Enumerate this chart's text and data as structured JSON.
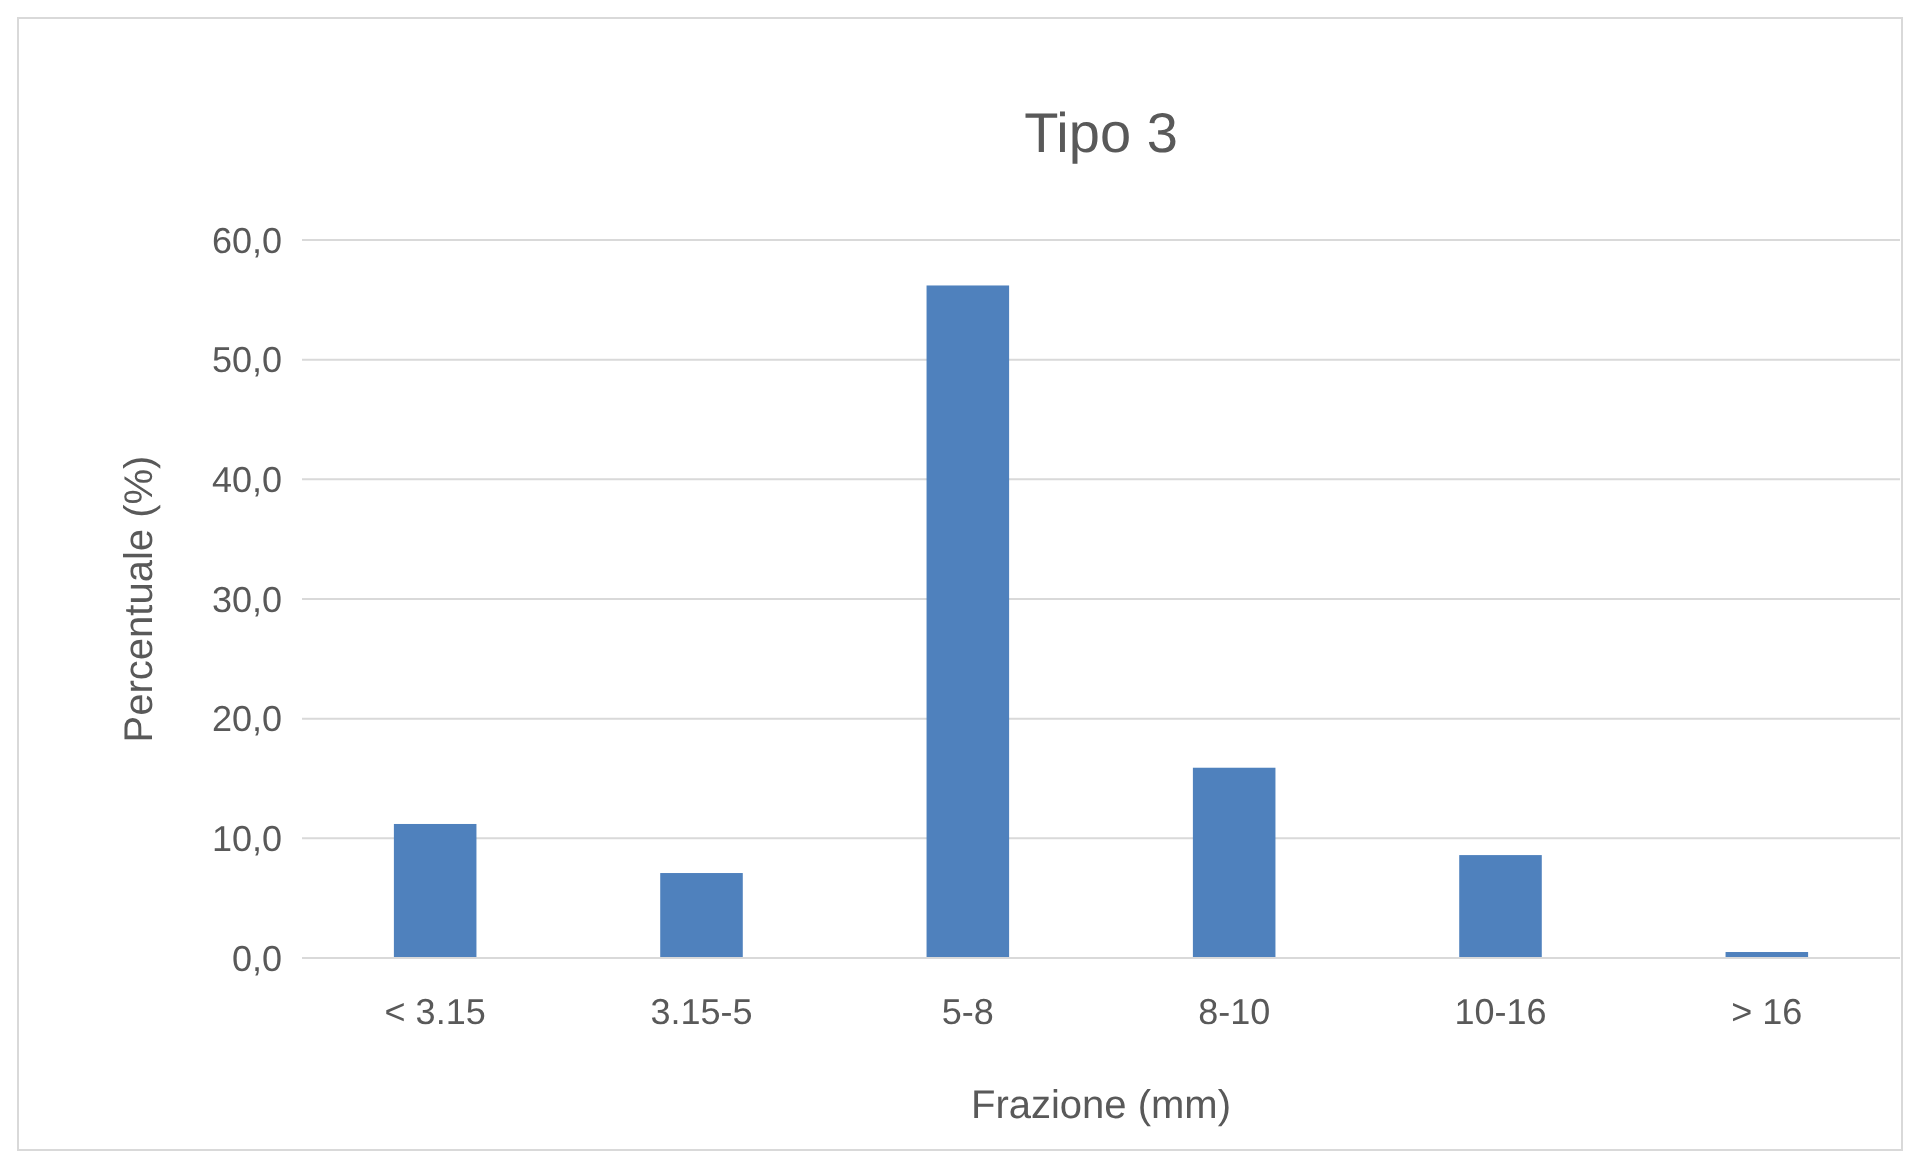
{
  "chart_data": {
    "type": "bar",
    "title": "Tipo 3",
    "xlabel": "Frazione (mm)",
    "ylabel": "Percentuale (%)",
    "categories": [
      "< 3.15",
      "3.15-5",
      "5-8",
      "8-10",
      "10-16",
      "> 16"
    ],
    "values": [
      11.2,
      7.1,
      56.2,
      15.9,
      8.6,
      0.5
    ],
    "color": "#4f81bd",
    "ylim": [
      0,
      60
    ],
    "yticks": [
      {
        "value": 0,
        "label": "0,0"
      },
      {
        "value": 10,
        "label": "10,0"
      },
      {
        "value": 20,
        "label": "20,0"
      },
      {
        "value": 30,
        "label": "30,0"
      },
      {
        "value": 40,
        "label": "40,0"
      },
      {
        "value": 50,
        "label": "50,0"
      },
      {
        "value": 60,
        "label": "60,0"
      }
    ],
    "grid": "y"
  }
}
